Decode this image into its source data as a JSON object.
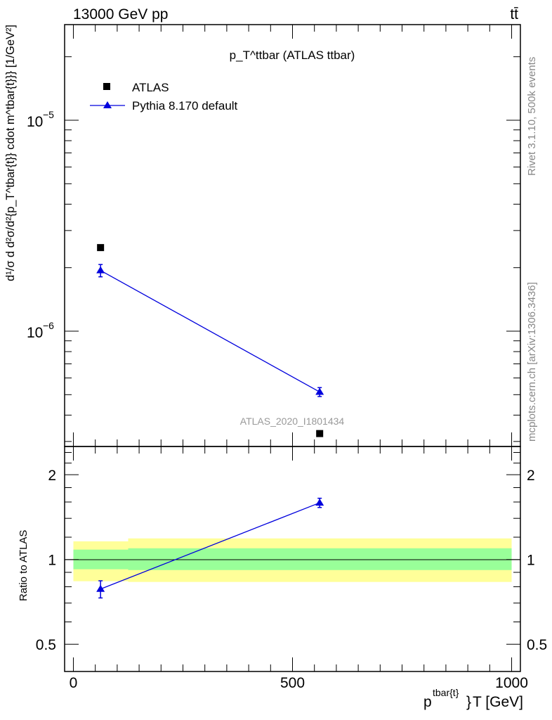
{
  "chart_data": [
    {
      "type": "scatter",
      "title": "p_T^ttbar (ATLAS ttbar)",
      "title_main": "p",
      "title_sub": "T",
      "title_sup": "ttbar",
      "title_rest": "(ATLAS ttbar)",
      "top_left": "13000 GeV pp",
      "top_right": "tt̄",
      "ylabel": "d¹/σ d d²σ/d²{p_T^tbar{t}} cdot m^tbar{t}}} [1/GeV²]",
      "yscale": "log",
      "ylim": [
        2.84e-07,
        2.84e-05
      ],
      "xlim": [
        -20,
        1020
      ],
      "ytick_labels": [
        {
          "value": 1e-05,
          "label": "10",
          "exp": "−5"
        },
        {
          "value": 1e-06,
          "label": "10",
          "exp": "−6"
        }
      ],
      "legend": [
        {
          "name": "ATLAS"
        },
        {
          "name": "Pythia 8.170 default"
        }
      ],
      "legend_position": "top-left",
      "series": [
        {
          "name": "ATLAS",
          "color": "#000000",
          "marker": "square",
          "x": [
            62,
            562
          ],
          "y": [
            2.49e-06,
            3.27e-07
          ]
        },
        {
          "name": "Pythia 8.170 default",
          "color": "#0000dd",
          "marker": "triangle",
          "x": [
            62,
            562
          ],
          "y": [
            1.94e-06,
            5.15e-07
          ],
          "yerr": [
            1.3e-07,
            2.5e-08
          ]
        }
      ],
      "annotation": "ATLAS_2020_I1801434",
      "side_text_top": "Rivet 3.1.10,  500k events",
      "side_text_bottom": "mcplots.cern.ch [arXiv:1306.3436]"
    },
    {
      "type": "line",
      "ylabel": "Ratio to ATLAS",
      "yscale": "log",
      "ylim": [
        0.4,
        2.52
      ],
      "xlim": [
        -20,
        1020
      ],
      "xlabel": "p^tbar{t}}_T [GeV]",
      "xlabel_main": "p",
      "xlabel_sup": "tbar{t}",
      "xlabel_sub": "}",
      "xlabel_rest": "T [GeV]",
      "xtick_labels": [
        {
          "value": 0,
          "label": "0"
        },
        {
          "value": 500,
          "label": "500"
        },
        {
          "value": 1000,
          "label": "1000"
        }
      ],
      "ytick_labels": [
        {
          "value": 0.5,
          "label": "0.5"
        },
        {
          "value": 1,
          "label": "1"
        },
        {
          "value": 2,
          "label": "2"
        }
      ],
      "bands": [
        {
          "x0": 0,
          "x1": 125,
          "yellow": [
            0.837,
            1.16
          ],
          "green": [
            0.923,
            1.084
          ]
        },
        {
          "x0": 125,
          "x1": 1000,
          "yellow": [
            0.832,
            1.188
          ],
          "green": [
            0.917,
            1.096
          ]
        }
      ],
      "series": [
        {
          "name": "Pythia 8.170 default",
          "color": "#0000dd",
          "x": [
            62,
            562
          ],
          "y": [
            0.785,
            1.59
          ],
          "yerr": [
            0.055,
            0.06
          ]
        }
      ]
    }
  ]
}
